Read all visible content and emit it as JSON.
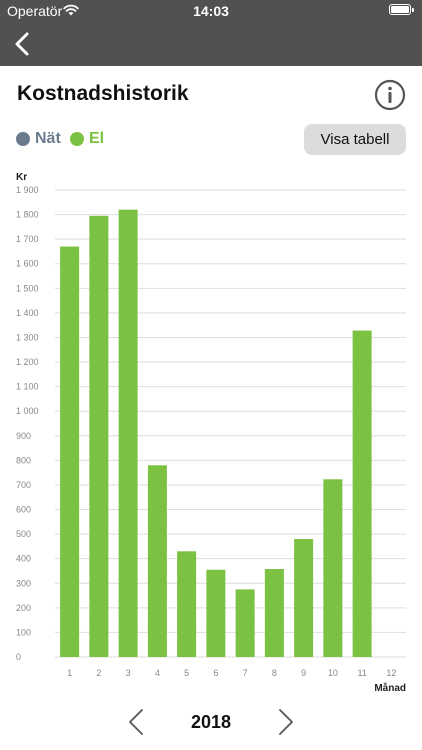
{
  "status_bar": {
    "carrier": "Operatör",
    "time": "14:03"
  },
  "nav": {
    "back_icon": "chevron-left-icon"
  },
  "page": {
    "title": "Kostnadshistorik",
    "info_icon": "info-icon"
  },
  "legend": [
    {
      "label": "Nät",
      "color": "#6a7b8c"
    },
    {
      "label": "El",
      "color": "#7bc142"
    }
  ],
  "table_button": {
    "label": "Visa tabell"
  },
  "year_selector": {
    "year": "2018",
    "prev_icon": "chevron-left-icon",
    "next_icon": "chevron-right-icon"
  },
  "chart_data": {
    "type": "bar",
    "ylabel": "Kr",
    "xlabel": "Månad",
    "categories": [
      "1",
      "2",
      "3",
      "4",
      "5",
      "6",
      "7",
      "8",
      "9",
      "10",
      "11",
      "12"
    ],
    "series": [
      {
        "name": "El",
        "color": "#7bc142",
        "values": [
          1670,
          1795,
          1820,
          780,
          430,
          355,
          275,
          358,
          480,
          723,
          1328,
          null
        ]
      }
    ],
    "ylim": [
      0,
      1900
    ],
    "yticks": [
      0,
      100,
      200,
      300,
      400,
      500,
      600,
      700,
      800,
      900,
      1000,
      1100,
      1200,
      1300,
      1400,
      1500,
      1600,
      1700,
      1800,
      1900
    ],
    "ytick_labels": [
      "0",
      "100",
      "200",
      "300",
      "400",
      "500",
      "600",
      "700",
      "800",
      "900",
      "1 000",
      "1 100",
      "1 200",
      "1 300",
      "1 400",
      "1 500",
      "1 600",
      "1 700",
      "1 800",
      "1 900"
    ],
    "grid": true
  }
}
